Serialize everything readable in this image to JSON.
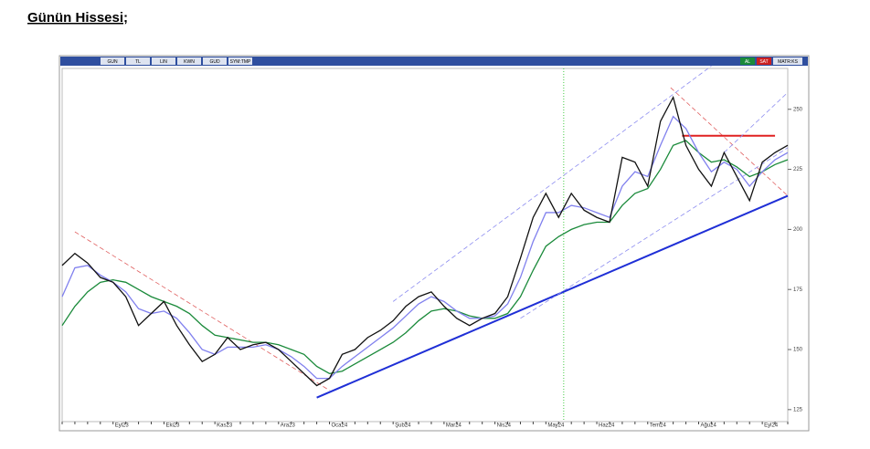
{
  "heading": "Günün Hissesi;",
  "toolbar": {
    "left": [
      "GUN",
      "TL",
      "LIN",
      "KWN",
      "GUD",
      "SYM:TMP"
    ],
    "right": [
      "AL",
      "SAT",
      "MATR:KS"
    ]
  },
  "chart_data": {
    "type": "line",
    "categories": [
      null,
      null,
      null,
      null,
      "Eyl23",
      null,
      null,
      null,
      "Eki23",
      null,
      null,
      null,
      "Kas23",
      null,
      null,
      null,
      null,
      "Ara23",
      null,
      null,
      null,
      "Oca24",
      null,
      null,
      null,
      null,
      "Şub24",
      null,
      null,
      null,
      "Mar24",
      null,
      null,
      null,
      "Nis24",
      null,
      null,
      null,
      "May24",
      null,
      null,
      null,
      "Haz24",
      null,
      null,
      null,
      "Tem24",
      null,
      null,
      null,
      "Ağu24",
      null,
      null,
      null,
      null,
      "Eyl24",
      null,
      null
    ],
    "series": [
      {
        "color": "#1a8a3a",
        "values": [
          160,
          168,
          174,
          178,
          179,
          178,
          175,
          172,
          170,
          168,
          165,
          160,
          156,
          155,
          154,
          153,
          153,
          152,
          150,
          148,
          143,
          140,
          141,
          144,
          147,
          150,
          153,
          157,
          162,
          166,
          167,
          166,
          164,
          163,
          163,
          165,
          172,
          183,
          193,
          197,
          200,
          202,
          203,
          203,
          210,
          215,
          217,
          225,
          235,
          237,
          232,
          228,
          229,
          226,
          222,
          224,
          227,
          229
        ]
      },
      {
        "color": "#8080ee",
        "values": [
          172,
          184,
          185,
          181,
          178,
          174,
          167,
          165,
          166,
          163,
          157,
          150,
          148,
          151,
          151,
          151,
          152,
          150,
          147,
          143,
          138,
          138,
          143,
          147,
          151,
          155,
          159,
          164,
          169,
          172,
          170,
          166,
          163,
          163,
          164,
          169,
          180,
          195,
          207,
          207,
          210,
          209,
          207,
          205,
          218,
          224,
          222,
          235,
          247,
          242,
          232,
          224,
          228,
          225,
          218,
          224,
          229,
          232
        ]
      },
      {
        "color": "#111111",
        "values": [
          185,
          190,
          186,
          180,
          178,
          172,
          160,
          165,
          170,
          160,
          152,
          145,
          148,
          155,
          150,
          152,
          153,
          150,
          145,
          140,
          135,
          138,
          148,
          150,
          155,
          158,
          162,
          168,
          172,
          174,
          168,
          163,
          160,
          163,
          165,
          172,
          188,
          205,
          215,
          205,
          215,
          208,
          205,
          203,
          230,
          228,
          218,
          245,
          255,
          235,
          225,
          218,
          232,
          222,
          212,
          228,
          232,
          235
        ]
      }
    ],
    "lines": [
      {
        "x": [
          20,
          57
        ],
        "values": [
          130,
          214
        ],
        "color": "#1f2fd6",
        "dash": false
      },
      {
        "x": [
          1,
          21
        ],
        "values": [
          199,
          133
        ],
        "color": "#e06060",
        "dash": true
      },
      {
        "x": [
          47.8,
          57
        ],
        "values": [
          259,
          214
        ],
        "color": "#e06060",
        "dash": true
      },
      {
        "x": [
          48.7,
          56
        ],
        "values": [
          239,
          239
        ],
        "color": "#e02020",
        "dash": false
      },
      {
        "x": [
          26,
          51
        ],
        "values": [
          170,
          268
        ],
        "color": "#8c8cf0",
        "dash": true
      },
      {
        "x": [
          36,
          57
        ],
        "values": [
          163,
          234
        ],
        "color": "#8c8cf0",
        "dash": true
      },
      {
        "x": [
          52,
          57
        ],
        "values": [
          232,
          257
        ],
        "color": "#8c8cf0",
        "dash": true
      }
    ],
    "vline_x": 39.4,
    "ylim": [
      120,
      267
    ],
    "yticks": [
      125,
      150,
      175,
      200,
      225,
      250
    ]
  }
}
